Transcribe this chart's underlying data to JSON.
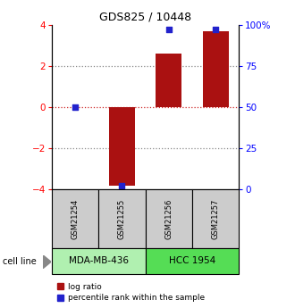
{
  "title": "GDS825 / 10448",
  "samples": [
    "GSM21254",
    "GSM21255",
    "GSM21256",
    "GSM21257"
  ],
  "log_ratios": [
    0.0,
    -3.8,
    2.6,
    3.7
  ],
  "percentile_ranks": [
    50,
    2,
    97,
    97
  ],
  "cell_lines": [
    {
      "label": "MDA-MB-436",
      "samples": [
        0,
        1
      ],
      "color": "#b0f0b0"
    },
    {
      "label": "HCC 1954",
      "samples": [
        2,
        3
      ],
      "color": "#55dd55"
    }
  ],
  "bar_color": "#aa1111",
  "dot_color": "#2222cc",
  "ylim_left": [
    -4,
    4
  ],
  "ylim_right": [
    0,
    100
  ],
  "yticks_left": [
    -4,
    -2,
    0,
    2,
    4
  ],
  "yticks_right": [
    0,
    25,
    50,
    75,
    100
  ],
  "ytick_labels_right": [
    "0",
    "25",
    "50",
    "75",
    "100%"
  ],
  "dotted_lines": [
    -2,
    2
  ],
  "zero_line_color": "#cc2222",
  "dotted_color": "#888888",
  "sample_box_color": "#cccccc",
  "cell_line_label": "cell line",
  "legend_items": [
    {
      "label": "log ratio",
      "color": "#aa1111"
    },
    {
      "label": "percentile rank within the sample",
      "color": "#2222cc"
    }
  ],
  "bar_width": 0.55,
  "title_fontsize": 9,
  "tick_fontsize": 7.5,
  "sample_fontsize": 6,
  "cell_fontsize": 7.5,
  "legend_fontsize": 6.5
}
